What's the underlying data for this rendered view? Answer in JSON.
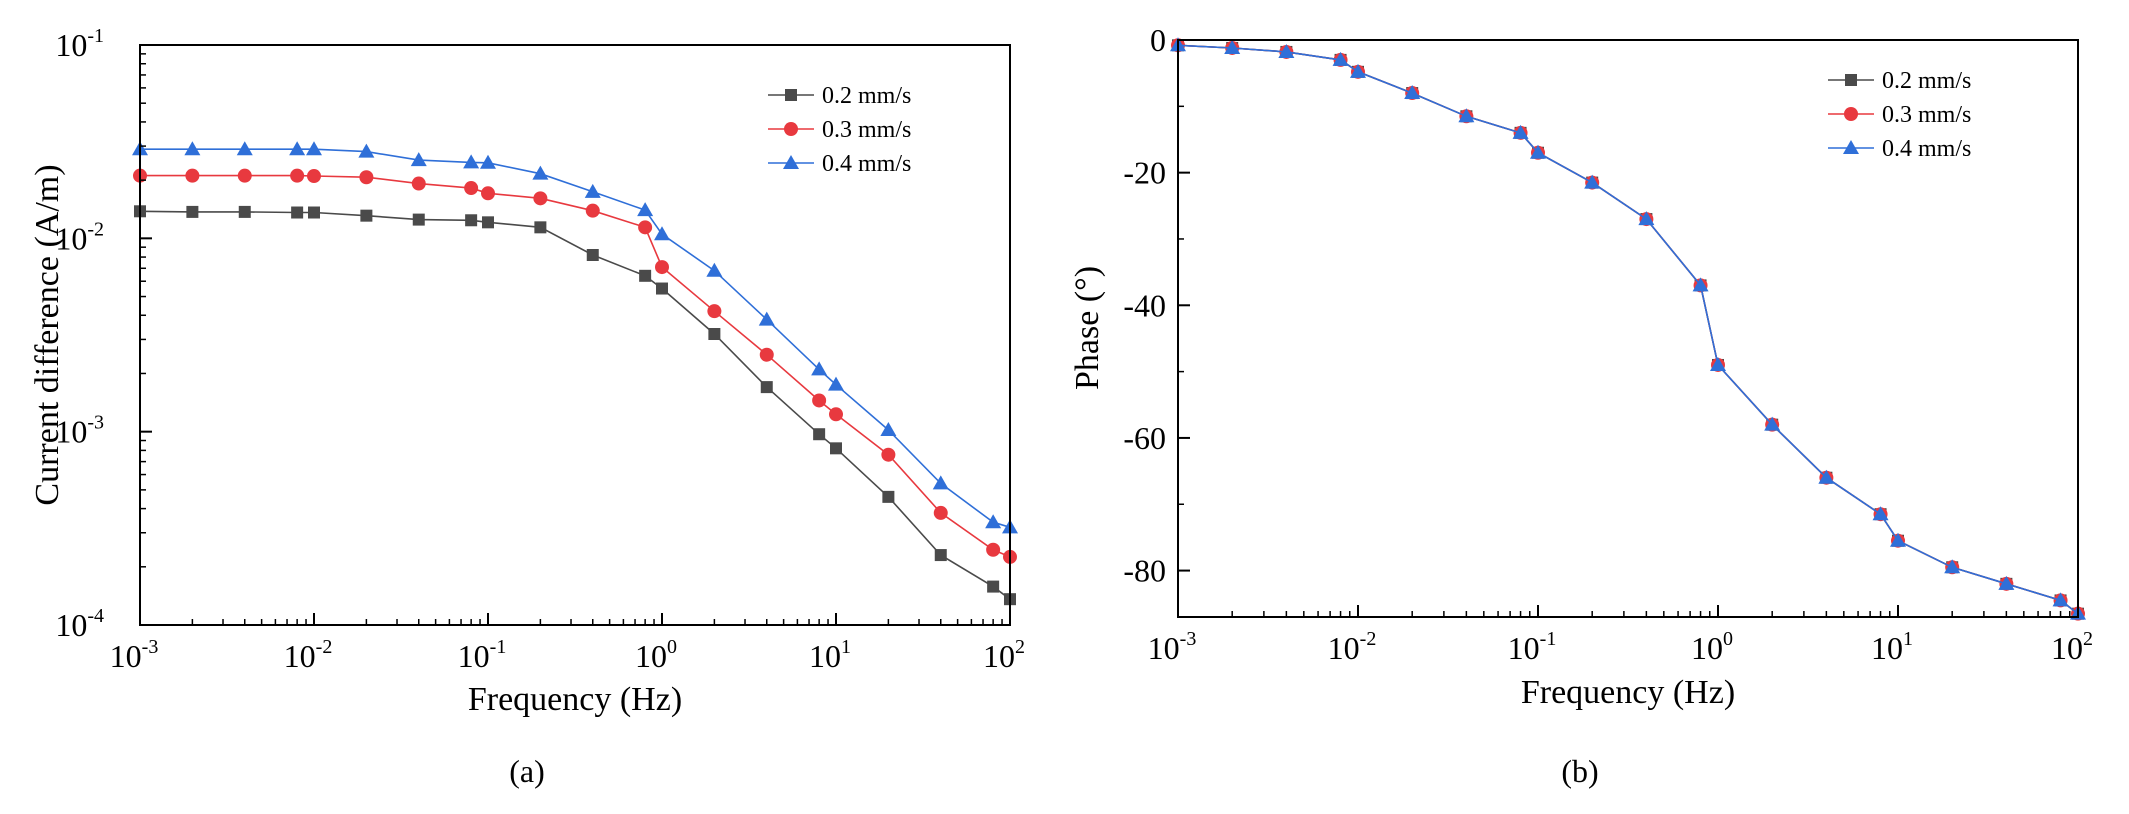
{
  "chart_data": [
    {
      "type": "line",
      "panel_label": "(a)",
      "xscale": "log",
      "yscale": "log",
      "xlabel": "Frequency (Hz)",
      "ylabel": "Current difference (A/m)",
      "xlim": [
        0.001,
        100
      ],
      "ylim": [
        0.0001,
        0.1
      ],
      "x_ticks": [
        {
          "base": "10",
          "exp": "-3"
        },
        {
          "base": "10",
          "exp": "-2"
        },
        {
          "base": "10",
          "exp": "-1"
        },
        {
          "base": "10",
          "exp": "0"
        },
        {
          "base": "10",
          "exp": "1"
        },
        {
          "base": "10",
          "exp": "2"
        }
      ],
      "y_ticks": [
        {
          "base": "10",
          "exp": "-4"
        },
        {
          "base": "10",
          "exp": "-3"
        },
        {
          "base": "10",
          "exp": "-2"
        },
        {
          "base": "10",
          "exp": "-1"
        }
      ],
      "legend_position": "top-right",
      "x": [
        0.001,
        0.002,
        0.004,
        0.008,
        0.01,
        0.02,
        0.04,
        0.08,
        0.1,
        0.2,
        0.4,
        0.8,
        1,
        2,
        4,
        8,
        10,
        20,
        40,
        80,
        100
      ],
      "series": [
        {
          "name": "0.2 mm/s",
          "color": "#4a4a4a",
          "marker": "square",
          "values": [
            0.0138,
            0.0137,
            0.0137,
            0.0136,
            0.0136,
            0.0131,
            0.0125,
            0.0124,
            0.0121,
            0.0114,
            0.0082,
            0.0064,
            0.0055,
            0.0032,
            0.0017,
            0.00097,
            0.00082,
            0.00046,
            0.00023,
            0.000158,
            0.000136
          ]
        },
        {
          "name": "0.3 mm/s",
          "color": "#e8393f",
          "marker": "circle",
          "values": [
            0.0211,
            0.0211,
            0.0211,
            0.0211,
            0.021,
            0.0207,
            0.0192,
            0.0182,
            0.0171,
            0.0161,
            0.0139,
            0.0114,
            0.0071,
            0.0042,
            0.0025,
            0.00145,
            0.00123,
            0.00076,
            0.00038,
            0.000245,
            0.000225
          ]
        },
        {
          "name": "0.4 mm/s",
          "color": "#2f6fd8",
          "marker": "triangle",
          "values": [
            0.0289,
            0.0289,
            0.0289,
            0.0289,
            0.0289,
            0.0281,
            0.0254,
            0.0247,
            0.0246,
            0.0216,
            0.0174,
            0.014,
            0.0105,
            0.0068,
            0.0038,
            0.0021,
            0.00175,
            0.00102,
            0.00054,
            0.00034,
            0.00032
          ]
        }
      ]
    },
    {
      "type": "line",
      "panel_label": "(b)",
      "xscale": "log",
      "yscale": "linear",
      "xlabel": "Frequency (Hz)",
      "ylabel": "Phase (°)",
      "xlim": [
        0.001,
        100
      ],
      "ylim": [
        -87,
        0
      ],
      "x_ticks": [
        {
          "base": "10",
          "exp": "-3"
        },
        {
          "base": "10",
          "exp": "-2"
        },
        {
          "base": "10",
          "exp": "-1"
        },
        {
          "base": "10",
          "exp": "0"
        },
        {
          "base": "10",
          "exp": "1"
        },
        {
          "base": "10",
          "exp": "2"
        }
      ],
      "y_ticks": [
        0,
        -20,
        -40,
        -60,
        -80
      ],
      "legend_position": "top-right",
      "x": [
        0.001,
        0.002,
        0.004,
        0.008,
        0.01,
        0.02,
        0.04,
        0.08,
        0.1,
        0.2,
        0.4,
        0.8,
        1,
        2,
        4,
        8,
        10,
        20,
        40,
        80,
        100
      ],
      "series": [
        {
          "name": "0.2 mm/s",
          "color": "#4a4a4a",
          "marker": "square",
          "values": [
            -0.8,
            -1.2,
            -1.8,
            -3.0,
            -4.8,
            -8.0,
            -11.5,
            -14.0,
            -17.0,
            -21.5,
            -27.0,
            -37.0,
            -49.0,
            -58.0,
            -66.0,
            -71.5,
            -75.5,
            -79.5,
            -82.0,
            -84.5,
            -86.5
          ]
        },
        {
          "name": "0.3 mm/s",
          "color": "#e8393f",
          "marker": "circle",
          "values": [
            -0.8,
            -1.2,
            -1.8,
            -3.0,
            -4.8,
            -8.0,
            -11.5,
            -14.0,
            -17.0,
            -21.5,
            -27.0,
            -37.0,
            -49.0,
            -58.0,
            -66.0,
            -71.5,
            -75.5,
            -79.5,
            -82.0,
            -84.5,
            -86.5
          ]
        },
        {
          "name": "0.4 mm/s",
          "color": "#2f6fd8",
          "marker": "triangle",
          "values": [
            -0.8,
            -1.2,
            -1.8,
            -3.0,
            -4.8,
            -8.0,
            -11.5,
            -14.0,
            -17.0,
            -21.5,
            -27.0,
            -37.0,
            -49.0,
            -58.0,
            -66.0,
            -71.5,
            -75.5,
            -79.5,
            -82.0,
            -84.5,
            -86.5
          ]
        }
      ]
    }
  ]
}
